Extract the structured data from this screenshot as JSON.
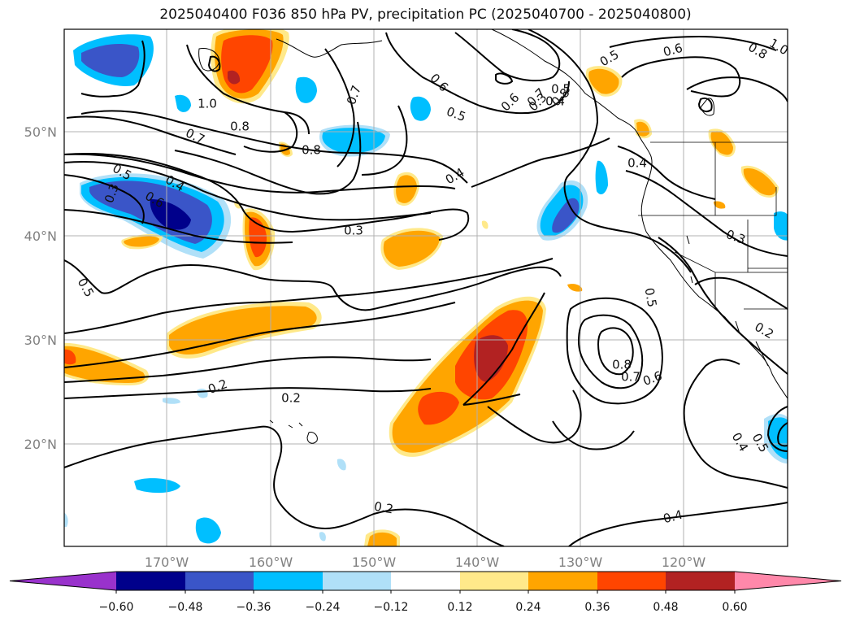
{
  "title": "2025040400 F036 850 hPa PV, precipitation PC (2025040700 - 2025040800)",
  "map": {
    "lat_ticks": [
      "50°N",
      "40°N",
      "30°N",
      "20°N"
    ],
    "lon_ticks": [
      "170°W",
      "160°W",
      "150°W",
      "140°W",
      "130°W",
      "120°W"
    ],
    "contour_labels": [
      "0.5",
      "0.6",
      "0.4",
      "0.3",
      "1.0",
      "0.8",
      "0.7",
      "0.5",
      "0.7",
      "0.6",
      "0.5",
      "0.4",
      "0.3",
      "0.2",
      "0.8",
      "0.4",
      "0.6",
      "0.7",
      "0.8",
      "0.5",
      "0.4",
      "0.3",
      "0.2",
      "0.4",
      "0.5",
      "0.2",
      "0.2",
      "0.3",
      "0.6",
      "0.5",
      "0.6",
      "0.8",
      "0.7",
      "0.8",
      "1.0",
      "0.5",
      "0.4"
    ],
    "shading_colors": {
      "neg_strong": "#00008b",
      "neg_mid": "#3a55c8",
      "neg_light": "#00bfff",
      "neg_faint": "#b0e0f8",
      "pos_faint": "#ffe98a",
      "pos_light": "#ffa500",
      "pos_mid": "#ff4500",
      "pos_strong": "#b22222"
    }
  },
  "colorbar": {
    "ticks": [
      "−0.60",
      "−0.48",
      "−0.36",
      "−0.24",
      "−0.12",
      "0.12",
      "0.24",
      "0.36",
      "0.48",
      "0.60"
    ],
    "colors": [
      "#9932cc",
      "#00008b",
      "#3a55c8",
      "#00bfff",
      "#b0e0f8",
      "#ffffff",
      "#ffe98a",
      "#ffa500",
      "#ff4500",
      "#b22222",
      "#ff88aa"
    ]
  }
}
